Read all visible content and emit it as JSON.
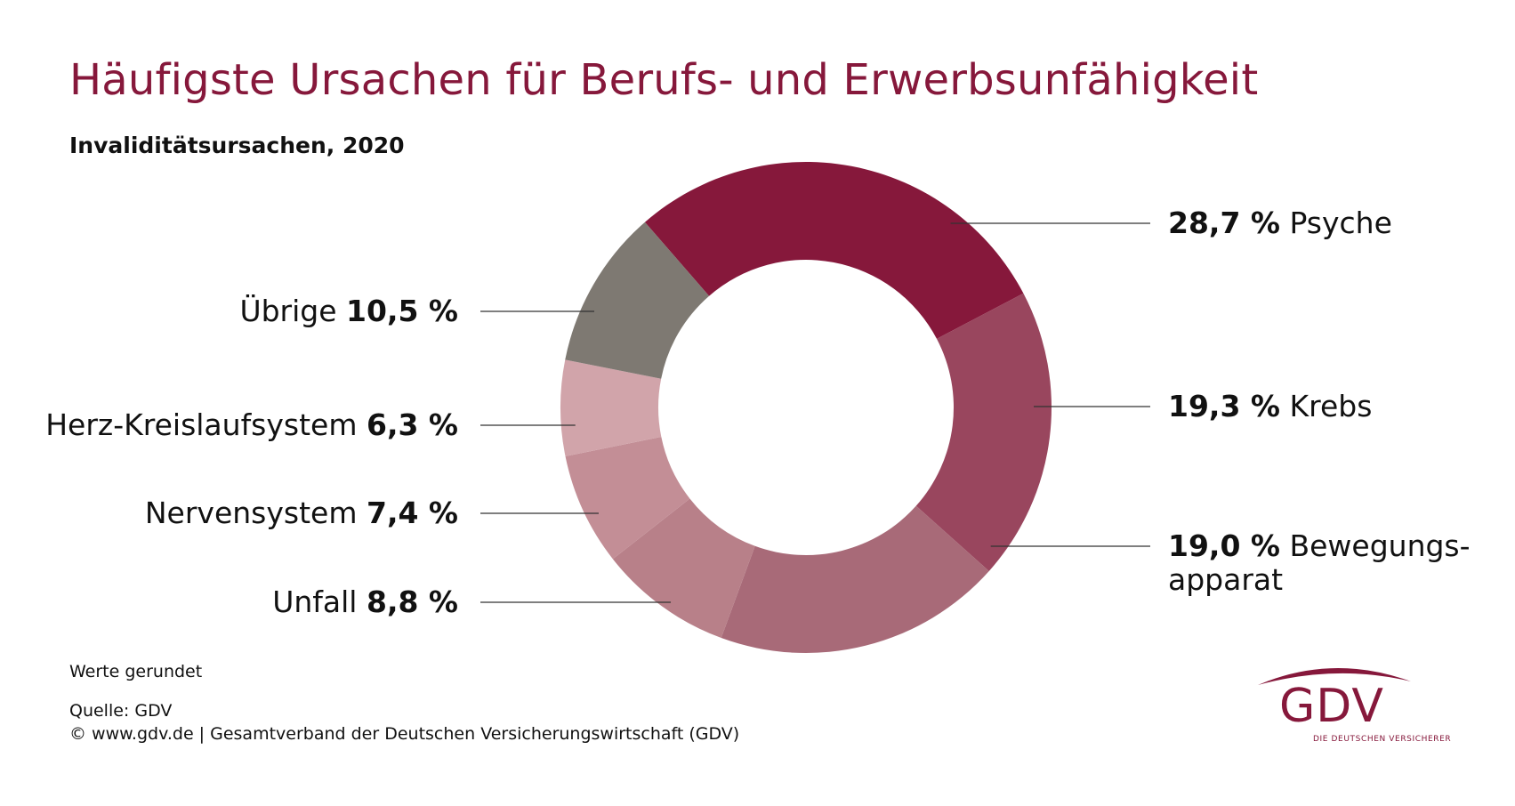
{
  "title": "Häufigste Ursachen für Berufs- und Erwerbsunfähigkeit",
  "subtitle": "Invaliditätsursachen, 2020",
  "chart_data": {
    "type": "pie",
    "donut": true,
    "unit": "%",
    "categories": [
      "Psyche",
      "Krebs",
      "Bewegungsapparat",
      "Unfall",
      "Nervensystem",
      "Herz-Kreislaufsystem",
      "Übrige"
    ],
    "values": [
      28.7,
      19.3,
      19.0,
      8.8,
      7.4,
      6.3,
      10.5
    ],
    "colors": [
      "#86183b",
      "#99465e",
      "#a86a78",
      "#b88089",
      "#c38e96",
      "#d1a4aa",
      "#7e7972"
    ],
    "slices": [
      {
        "name": "Psyche",
        "value_text": "28,7 %",
        "label_lines": [
          "Psyche"
        ],
        "side": "right"
      },
      {
        "name": "Krebs",
        "value_text": "19,3 %",
        "label_lines": [
          "Krebs"
        ],
        "side": "right"
      },
      {
        "name": "Bewegungsapparat",
        "value_text": "19,0 %",
        "label_lines": [
          "Bewegungs-",
          "apparat"
        ],
        "side": "right"
      },
      {
        "name": "Unfall",
        "value_text": "8,8 %",
        "label_lines": [
          "Unfall"
        ],
        "side": "left"
      },
      {
        "name": "Nervensystem",
        "value_text": "7,4 %",
        "label_lines": [
          "Nervensystem"
        ],
        "side": "left"
      },
      {
        "name": "Herz-Kreislaufsystem",
        "value_text": "6,3 %",
        "label_lines": [
          "Herz-Kreislaufsystem"
        ],
        "side": "left"
      },
      {
        "name": "Übrige",
        "value_text": "10,5 %",
        "label_lines": [
          "Übrige"
        ],
        "side": "left"
      }
    ]
  },
  "footer": {
    "note": "Werte gerundet",
    "source": "Quelle: GDV",
    "copyright": "© www.gdv.de | Gesamtverband der Deutschen Versicherungswirtschaft (GDV)"
  },
  "logo": {
    "text": "GDV",
    "tagline": "DIE DEUTSCHEN VERSICHERER",
    "color": "#86183b"
  }
}
